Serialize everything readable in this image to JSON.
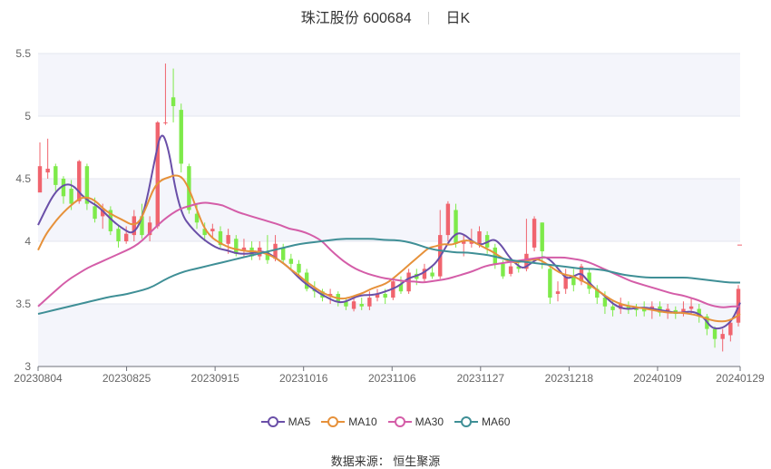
{
  "title": {
    "main": "珠江股份 600684",
    "tab": "日K"
  },
  "source": "数据来源： 恒生聚源",
  "colors": {
    "up": "#f0646e",
    "down": "#7eea4a",
    "band": "#f4f5fb",
    "grid": "#e3e6ef"
  },
  "chart_data": {
    "type": "candlestick",
    "ylim": [
      3,
      5.5
    ],
    "yticks": [
      "3",
      "3.5",
      "4",
      "4.5",
      "5",
      "5.5"
    ],
    "xticks": [
      {
        "i": 0,
        "label": "20230804"
      },
      {
        "i": 15,
        "label": "20230825"
      },
      {
        "i": 30,
        "label": "20230915"
      },
      {
        "i": 45,
        "label": "20231016"
      },
      {
        "i": 60,
        "label": "20231106"
      },
      {
        "i": 75,
        "label": "20231127"
      },
      {
        "i": 90,
        "label": "20231218"
      },
      {
        "i": 105,
        "label": "20240109"
      },
      {
        "i": 119,
        "label": "20240129"
      }
    ],
    "num_points": 120,
    "series": [
      {
        "name": "MA5",
        "color": "#6a4fa8",
        "values": [
          4.13,
          4.25,
          4.36,
          4.43,
          4.46,
          4.44,
          4.37,
          4.32,
          4.29,
          4.24,
          4.18,
          4.13,
          4.09,
          4.06,
          4.13,
          4.32,
          4.62,
          4.89,
          4.75,
          4.4,
          4.2,
          4.12,
          4.06,
          4.01,
          3.97,
          3.94,
          3.93,
          3.91,
          3.9,
          3.9,
          3.91,
          3.92,
          3.9,
          3.86,
          3.82,
          3.77,
          3.71,
          3.66,
          3.62,
          3.58,
          3.55,
          3.52,
          3.51,
          3.53,
          3.56,
          3.57,
          3.57,
          3.58,
          3.6,
          3.62,
          3.65,
          3.7,
          3.72,
          3.74,
          3.78,
          3.83,
          3.92,
          4.02,
          4.07,
          4.05,
          4.0,
          3.97,
          3.99,
          4.02,
          3.97,
          3.88,
          3.82,
          3.78,
          3.82,
          3.86,
          3.88,
          3.84,
          3.77,
          3.7,
          3.72,
          3.75,
          3.68,
          3.62,
          3.58,
          3.52,
          3.48,
          3.46,
          3.46,
          3.47,
          3.47,
          3.46,
          3.45,
          3.44,
          3.43,
          3.43,
          3.44,
          3.43,
          3.39,
          3.31,
          3.3,
          3.32,
          3.38,
          3.51
        ]
      },
      {
        "name": "MA10",
        "color": "#e6913a",
        "values": [
          3.93,
          4.05,
          4.13,
          4.2,
          4.26,
          4.31,
          4.35,
          4.35,
          4.32,
          4.26,
          4.22,
          4.19,
          4.16,
          4.13,
          4.15,
          4.28,
          4.43,
          4.49,
          4.51,
          4.53,
          4.51,
          4.4,
          4.24,
          4.1,
          4.03,
          3.99,
          3.96,
          3.94,
          3.93,
          3.92,
          3.92,
          3.91,
          3.89,
          3.86,
          3.82,
          3.77,
          3.73,
          3.68,
          3.64,
          3.6,
          3.57,
          3.55,
          3.54,
          3.55,
          3.57,
          3.59,
          3.62,
          3.64,
          3.66,
          3.7,
          3.75,
          3.8,
          3.85,
          3.9,
          3.95,
          3.96,
          3.98,
          3.97,
          3.99,
          4.01,
          4.0,
          3.97,
          3.94,
          3.91,
          3.87,
          3.84,
          3.83,
          3.84,
          3.85,
          3.86,
          3.83,
          3.79,
          3.75,
          3.73,
          3.72,
          3.69,
          3.66,
          3.62,
          3.58,
          3.54,
          3.51,
          3.49,
          3.48,
          3.47,
          3.46,
          3.45,
          3.44,
          3.43,
          3.43,
          3.43,
          3.42,
          3.41,
          3.39,
          3.37,
          3.36,
          3.36,
          3.38,
          3.42
        ]
      },
      {
        "name": "MA30",
        "color": "#d45da8",
        "values": [
          3.48,
          3.54,
          3.6,
          3.66,
          3.71,
          3.75,
          3.79,
          3.82,
          3.85,
          3.88,
          3.91,
          3.94,
          3.98,
          4.04,
          4.11,
          4.17,
          4.22,
          4.26,
          4.28,
          4.3,
          4.31,
          4.3,
          4.29,
          4.26,
          4.23,
          4.21,
          4.19,
          4.17,
          4.15,
          4.13,
          4.1,
          4.09,
          4.07,
          4.04,
          4.0,
          3.93,
          3.87,
          3.82,
          3.78,
          3.75,
          3.73,
          3.71,
          3.7,
          3.69,
          3.68,
          3.68,
          3.67,
          3.68,
          3.69,
          3.7,
          3.72,
          3.74,
          3.76,
          3.79,
          3.81,
          3.82,
          3.83,
          3.84,
          3.85,
          3.86,
          3.87,
          3.87,
          3.87,
          3.87,
          3.86,
          3.85,
          3.83,
          3.8,
          3.77,
          3.74,
          3.71,
          3.68,
          3.66,
          3.64,
          3.62,
          3.6,
          3.58,
          3.57,
          3.55,
          3.53,
          3.5,
          3.48,
          3.47,
          3.48,
          3.48
        ]
      },
      {
        "name": "MA60",
        "color": "#3f8f96",
        "values": [
          3.42,
          3.44,
          3.46,
          3.48,
          3.5,
          3.52,
          3.54,
          3.56,
          3.57,
          3.59,
          3.61,
          3.64,
          3.69,
          3.73,
          3.76,
          3.78,
          3.8,
          3.82,
          3.84,
          3.86,
          3.88,
          3.9,
          3.92,
          3.94,
          3.96,
          3.98,
          3.99,
          4.0,
          4.01,
          4.02,
          4.02,
          4.02,
          4.02,
          4.01,
          4.01,
          4.0,
          3.98,
          3.95,
          3.93,
          3.92,
          3.91,
          3.91,
          3.9,
          3.89,
          3.87,
          3.85,
          3.84,
          3.83,
          3.82,
          3.81,
          3.8,
          3.79,
          3.78,
          3.78,
          3.77,
          3.75,
          3.73,
          3.72,
          3.71,
          3.71,
          3.71,
          3.71,
          3.71,
          3.7,
          3.69,
          3.68,
          3.67,
          3.67
        ]
      },
      {
        "name": "MA_TAIL",
        "color": "#d45da8",
        "values": []
      }
    ],
    "candles": [
      [
        4.39,
        4.6,
        4.79,
        4.4
      ],
      [
        4.55,
        4.58,
        4.82,
        4.5
      ],
      [
        4.6,
        4.45,
        4.62,
        4.4
      ],
      [
        4.5,
        4.36,
        4.52,
        4.3
      ],
      [
        4.42,
        4.3,
        4.49,
        4.25
      ],
      [
        4.32,
        4.64,
        4.65,
        4.3
      ],
      [
        4.6,
        4.3,
        4.62,
        4.25
      ],
      [
        4.28,
        4.18,
        4.35,
        4.15
      ],
      [
        4.2,
        4.25,
        4.3,
        4.1
      ],
      [
        4.25,
        4.08,
        4.28,
        4.05
      ],
      [
        4.1,
        4.0,
        4.12,
        3.95
      ],
      [
        4.0,
        4.06,
        4.12,
        3.98
      ],
      [
        4.05,
        4.2,
        4.25,
        4.0
      ],
      [
        4.2,
        4.05,
        4.3,
        4.02
      ],
      [
        4.05,
        4.15,
        4.2,
        4.0
      ],
      [
        4.12,
        4.95,
        4.96,
        4.1
      ],
      [
        4.95,
        4.95,
        5.42,
        4.93
      ],
      [
        5.15,
        5.08,
        5.38,
        4.95
      ],
      [
        5.05,
        4.62,
        5.1,
        4.55
      ],
      [
        4.6,
        4.25,
        4.62,
        4.22
      ],
      [
        4.22,
        4.15,
        4.3,
        4.1
      ],
      [
        4.1,
        4.05,
        4.15,
        4.0
      ],
      [
        4.08,
        4.1,
        4.14,
        4.02
      ],
      [
        4.08,
        3.97,
        4.12,
        3.95
      ],
      [
        3.98,
        4.05,
        4.1,
        3.9
      ],
      [
        4.02,
        3.9,
        4.05,
        3.88
      ],
      [
        3.92,
        3.95,
        4.02,
        3.88
      ],
      [
        3.95,
        3.88,
        4.0,
        3.85
      ],
      [
        3.88,
        3.95,
        4.0,
        3.85
      ],
      [
        3.92,
        3.85,
        4.05,
        3.82
      ],
      [
        3.86,
        3.98,
        4.05,
        3.84
      ],
      [
        3.95,
        3.85,
        3.98,
        3.82
      ],
      [
        3.86,
        3.82,
        3.9,
        3.78
      ],
      [
        3.82,
        3.75,
        3.85,
        3.72
      ],
      [
        3.75,
        3.62,
        3.78,
        3.6
      ],
      [
        3.62,
        3.6,
        3.68,
        3.55
      ],
      [
        3.6,
        3.55,
        3.62,
        3.52
      ],
      [
        3.56,
        3.58,
        3.62,
        3.5
      ],
      [
        3.58,
        3.52,
        3.6,
        3.48
      ],
      [
        3.52,
        3.48,
        3.55,
        3.45
      ],
      [
        3.46,
        3.52,
        3.56,
        3.44
      ],
      [
        3.5,
        3.48,
        3.55,
        3.45
      ],
      [
        3.48,
        3.55,
        3.6,
        3.45
      ],
      [
        3.55,
        3.58,
        3.62,
        3.52
      ],
      [
        3.58,
        3.55,
        3.62,
        3.5
      ],
      [
        3.55,
        3.68,
        3.7,
        3.53
      ],
      [
        3.66,
        3.6,
        3.72,
        3.58
      ],
      [
        3.6,
        3.75,
        3.78,
        3.58
      ],
      [
        3.74,
        3.7,
        3.78,
        3.65
      ],
      [
        3.7,
        3.78,
        3.82,
        3.68
      ],
      [
        3.75,
        3.72,
        3.8,
        3.7
      ],
      [
        3.72,
        4.05,
        4.25,
        3.7
      ],
      [
        4.05,
        4.3,
        4.32,
        4.0
      ],
      [
        4.25,
        3.98,
        4.3,
        3.95
      ],
      [
        3.98,
        4.0,
        4.05,
        3.88
      ],
      [
        3.98,
        4.0,
        4.1,
        3.95
      ],
      [
        3.98,
        4.08,
        4.12,
        3.95
      ],
      [
        4.05,
        3.95,
        4.08,
        3.9
      ],
      [
        3.95,
        3.82,
        3.98,
        3.78
      ],
      [
        3.82,
        3.72,
        3.85,
        3.7
      ],
      [
        3.74,
        3.8,
        3.85,
        3.72
      ],
      [
        3.8,
        3.78,
        3.85,
        3.75
      ],
      [
        3.78,
        3.9,
        4.18,
        3.76
      ],
      [
        3.95,
        4.18,
        4.2,
        3.92
      ],
      [
        4.15,
        3.92,
        4.15,
        3.78
      ],
      [
        3.78,
        3.55,
        3.8,
        3.5
      ],
      [
        3.58,
        3.6,
        3.68,
        3.52
      ],
      [
        3.62,
        3.72,
        3.78,
        3.58
      ],
      [
        3.72,
        3.65,
        3.78,
        3.6
      ],
      [
        3.68,
        3.8,
        3.82,
        3.65
      ],
      [
        3.75,
        3.62,
        3.78,
        3.58
      ],
      [
        3.62,
        3.55,
        3.65,
        3.5
      ],
      [
        3.55,
        3.48,
        3.6,
        3.42
      ],
      [
        3.48,
        3.45,
        3.52,
        3.4
      ],
      [
        3.46,
        3.5,
        3.55,
        3.42
      ],
      [
        3.48,
        3.46,
        3.52,
        3.42
      ],
      [
        3.46,
        3.45,
        3.5,
        3.4
      ],
      [
        3.46,
        3.44,
        3.52,
        3.4
      ],
      [
        3.45,
        3.48,
        3.52,
        3.38
      ],
      [
        3.48,
        3.43,
        3.52,
        3.4
      ],
      [
        3.44,
        3.46,
        3.5,
        3.38
      ],
      [
        3.45,
        3.42,
        3.48,
        3.38
      ],
      [
        3.42,
        3.46,
        3.52,
        3.4
      ],
      [
        3.46,
        3.48,
        3.55,
        3.42
      ],
      [
        3.46,
        3.4,
        3.5,
        3.35
      ],
      [
        3.4,
        3.3,
        3.42,
        3.25
      ],
      [
        3.3,
        3.22,
        3.32,
        3.15
      ],
      [
        3.22,
        3.26,
        3.3,
        3.12
      ],
      [
        3.25,
        3.35,
        3.38,
        3.2
      ],
      [
        3.35,
        3.62,
        3.65,
        3.32
      ]
    ]
  },
  "legend": [
    {
      "name": "MA5",
      "color": "#6a4fa8"
    },
    {
      "name": "MA10",
      "color": "#e6913a"
    },
    {
      "name": "MA30",
      "color": "#d45da8"
    },
    {
      "name": "MA60",
      "color": "#3f8f96"
    }
  ]
}
